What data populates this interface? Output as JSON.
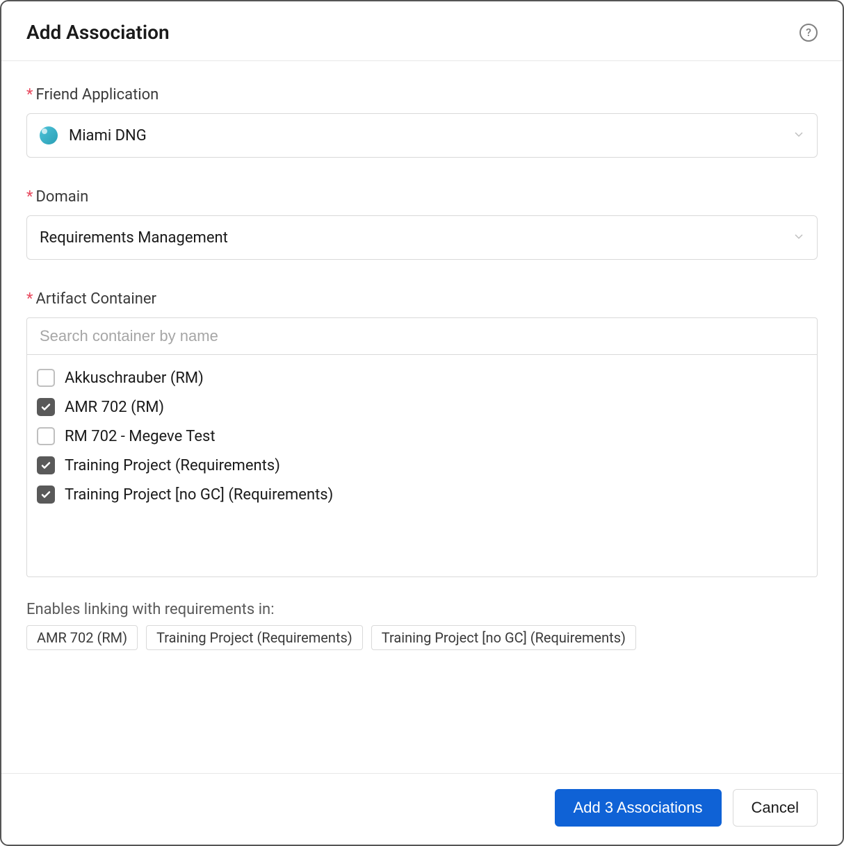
{
  "dialog": {
    "title": "Add Association"
  },
  "fields": {
    "friend_app": {
      "label": "Friend Application",
      "value": "Miami DNG"
    },
    "domain": {
      "label": "Domain",
      "value": "Requirements Management"
    },
    "artifact_container": {
      "label": "Artifact Container",
      "search_placeholder": "Search container by name"
    }
  },
  "containers": [
    {
      "label": "Akkuschrauber (RM)",
      "checked": false
    },
    {
      "label": "AMR 702 (RM)",
      "checked": true
    },
    {
      "label": "RM 702 - Megeve Test",
      "checked": false
    },
    {
      "label": "Training Project (Requirements)",
      "checked": true
    },
    {
      "label": "Training Project [no GC] (Requirements)",
      "checked": true
    }
  ],
  "summary": {
    "text": "Enables linking with requirements in:",
    "tags": [
      "AMR 702 (RM)",
      "Training Project (Requirements)",
      "Training Project [no GC] (Requirements)"
    ]
  },
  "footer": {
    "primary_label": "Add 3 Associations",
    "cancel_label": "Cancel"
  },
  "colors": {
    "border": "#d9d9d9",
    "primary_button": "#0f62d6",
    "required_star": "#e84a5f",
    "checkbox_checked": "#595959",
    "text": "#1a1a1a",
    "muted_text": "#5a5a5a",
    "placeholder": "#a6a6a6"
  },
  "typography": {
    "title_fontsize": 28,
    "label_fontsize": 22,
    "value_fontsize": 22,
    "button_fontsize": 22,
    "tag_fontsize": 20
  }
}
